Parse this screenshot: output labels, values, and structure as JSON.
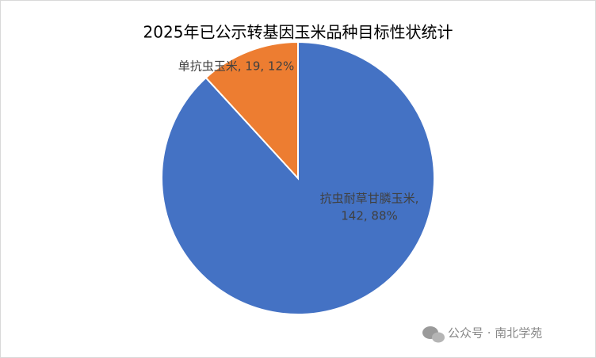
{
  "chart_data": {
    "type": "pie",
    "title": "2025年已公示转基因玉米品种目标性状统计",
    "categories": [
      "抗虫耐草甘膦玉米",
      "单抗虫玉米"
    ],
    "values": [
      142,
      19
    ],
    "value_labels": [
      [
        "抗虫耐草甘膦玉米,",
        "142, 88%"
      ],
      [
        "单抗虫玉米, 19, 12%"
      ]
    ],
    "colors": [
      "#4472c4",
      "#ed7d31"
    ]
  },
  "watermark": "公众号 · 南北学苑"
}
